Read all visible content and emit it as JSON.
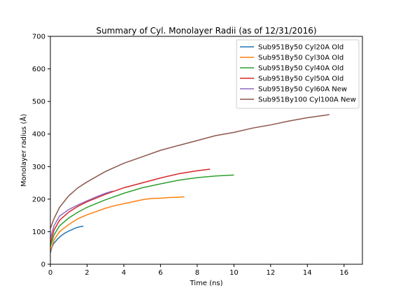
{
  "chart_data": {
    "type": "line",
    "title": "Summary of Cyl. Monolayer Radii (as of 12/31/2016)",
    "xlabel": "Time (ns)",
    "ylabel": "Monolayer radius (Å)",
    "xlim": [
      0,
      17
    ],
    "ylim": [
      0,
      700
    ],
    "xticks": [
      0,
      2,
      4,
      6,
      8,
      10,
      12,
      14,
      16
    ],
    "yticks": [
      0,
      100,
      200,
      300,
      400,
      500,
      600,
      700
    ],
    "grid": false,
    "legend_position": "upper-right",
    "series": [
      {
        "name": "Sub951By50 Cyl20A Old",
        "color": "#1f77b4",
        "x": [
          0,
          0.1,
          0.2,
          0.4,
          0.6,
          0.8,
          1.0,
          1.2,
          1.4,
          1.6,
          1.8
        ],
        "y": [
          35,
          55,
          65,
          78,
          88,
          96,
          102,
          107,
          112,
          115,
          117
        ]
      },
      {
        "name": "Sub951By50 Cyl30A Old",
        "color": "#ff7f0e",
        "x": [
          0,
          0.2,
          0.5,
          1.0,
          1.5,
          2.0,
          2.5,
          3.0,
          3.5,
          4.0,
          4.5,
          5.0,
          5.5,
          6.0,
          6.5,
          7.0,
          7.3
        ],
        "y": [
          40,
          75,
          100,
          122,
          140,
          152,
          162,
          172,
          180,
          186,
          192,
          198,
          202,
          203,
          205,
          206,
          207
        ]
      },
      {
        "name": "Sub951By50 Cyl40A Old",
        "color": "#2ca02c",
        "x": [
          0,
          0.2,
          0.5,
          1.0,
          1.5,
          2.0,
          3.0,
          4.0,
          5.0,
          6.0,
          7.0,
          8.0,
          9.0,
          10.0
        ],
        "y": [
          55,
          90,
          118,
          142,
          160,
          175,
          198,
          218,
          235,
          247,
          258,
          266,
          271,
          274
        ]
      },
      {
        "name": "Sub951By50 Cyl50A Old",
        "color": "#d62728",
        "x": [
          0,
          0.2,
          0.5,
          1.0,
          1.5,
          2.0,
          3.0,
          4.0,
          5.0,
          6.0,
          7.0,
          8.0,
          8.7
        ],
        "y": [
          65,
          105,
          135,
          160,
          178,
          192,
          215,
          235,
          250,
          265,
          278,
          287,
          292
        ]
      },
      {
        "name": "Sub951By50 Cyl60A New",
        "color": "#9467bd",
        "x": [
          0,
          0.2,
          0.5,
          1.0,
          1.5,
          2.0,
          2.5,
          3.0,
          3.4
        ],
        "y": [
          80,
          118,
          148,
          168,
          182,
          195,
          207,
          218,
          225
        ]
      },
      {
        "name": "Sub951By100 Cyl100A New",
        "color": "#8c564b",
        "x": [
          0,
          0.2,
          0.5,
          1.0,
          1.5,
          2.0,
          3.0,
          4.0,
          5.0,
          6.0,
          7.0,
          8.0,
          9.0,
          10.0,
          11.0,
          12.0,
          13.0,
          14.0,
          15.0,
          15.2
        ],
        "y": [
          110,
          140,
          175,
          210,
          235,
          253,
          285,
          310,
          330,
          350,
          365,
          380,
          395,
          405,
          418,
          428,
          440,
          450,
          458,
          460
        ]
      }
    ]
  }
}
